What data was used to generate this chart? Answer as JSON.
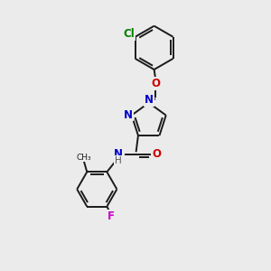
{
  "background_color": "#ebebeb",
  "bond_color": "#1a1a1a",
  "bond_width": 1.4,
  "atoms": {
    "Cl": {
      "color": "#008000",
      "fontsize": 8.5
    },
    "O": {
      "color": "#cc0000",
      "fontsize": 8.5
    },
    "N": {
      "color": "#0000cc",
      "fontsize": 8.5
    },
    "F": {
      "color": "#cc00cc",
      "fontsize": 8.5
    },
    "C": {
      "color": "#1a1a1a",
      "fontsize": 7.5
    }
  },
  "fig_width": 3.0,
  "fig_height": 3.0,
  "dpi": 100,
  "xlim": [
    0,
    10
  ],
  "ylim": [
    0,
    10
  ]
}
